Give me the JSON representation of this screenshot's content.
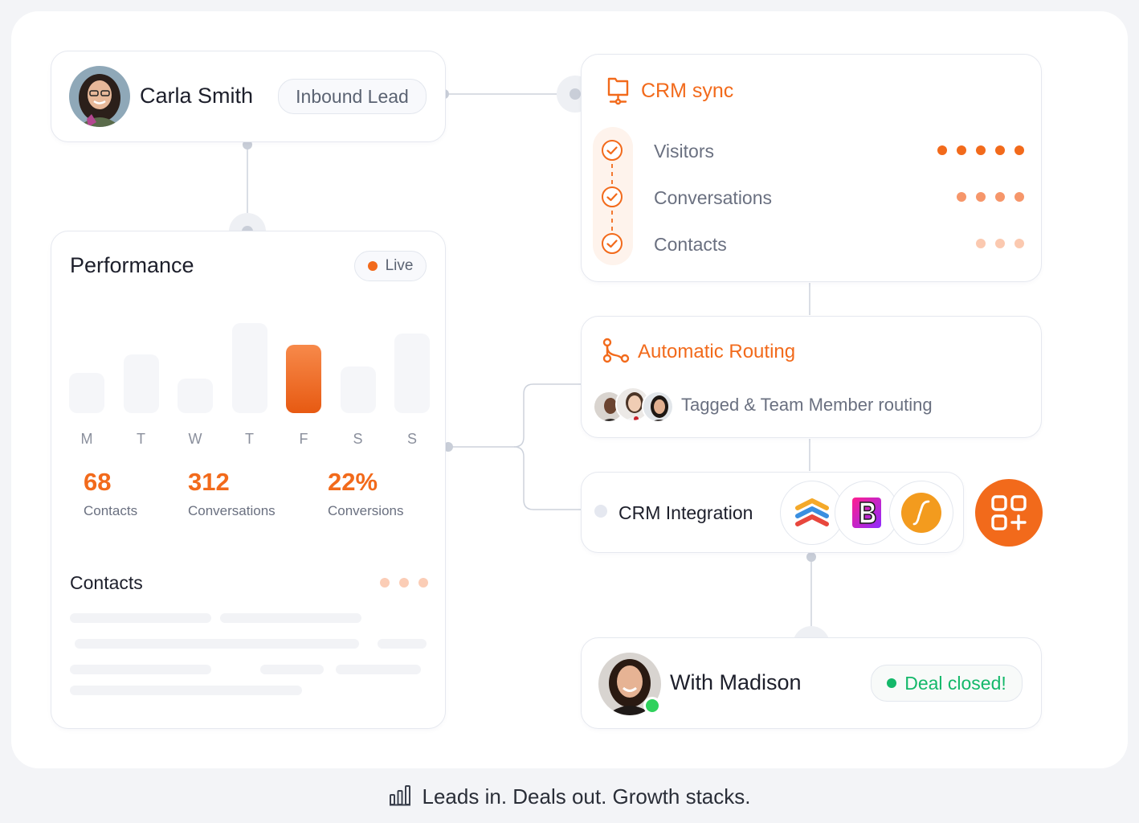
{
  "lead_card": {
    "name": "Carla Smith",
    "badge": "Inbound Lead"
  },
  "performance": {
    "title": "Performance",
    "live_label": "Live",
    "chart_data": {
      "type": "bar",
      "categories": [
        "M",
        "T",
        "W",
        "T",
        "F",
        "S",
        "S"
      ],
      "values": [
        52,
        76,
        44,
        116,
        88,
        60,
        102
      ],
      "highlight_index": 4,
      "ylim": [
        0,
        120
      ]
    },
    "stats": [
      {
        "value": "68",
        "label": "Contacts"
      },
      {
        "value": "312",
        "label": "Conversations"
      },
      {
        "value": "22%",
        "label": "Conversions"
      }
    ],
    "contacts_title": "Contacts"
  },
  "crm_sync": {
    "title": "CRM sync",
    "icon": "monitor-sync-icon",
    "steps": [
      {
        "label": "Visitors",
        "dots": 5
      },
      {
        "label": "Conversations",
        "dots": 4
      },
      {
        "label": "Contacts",
        "dots": 3
      }
    ]
  },
  "routing": {
    "title": "Automatic Routing",
    "icon": "route-icon",
    "subtitle": "Tagged & Team Member routing"
  },
  "integration": {
    "title": "CRM Integration",
    "logos": [
      "stacked-chevrons-logo",
      "b-logo",
      "s-curve-logo"
    ],
    "add_icon": "apps-add-icon"
  },
  "closed_card": {
    "name": "With Madison",
    "badge": "Deal closed!"
  },
  "footer": {
    "tagline": "Leads in. Deals out. Growth stacks.",
    "icon": "bar-chart-icon"
  },
  "colors": {
    "accent": "#f26a1b",
    "success": "#14b86a"
  }
}
